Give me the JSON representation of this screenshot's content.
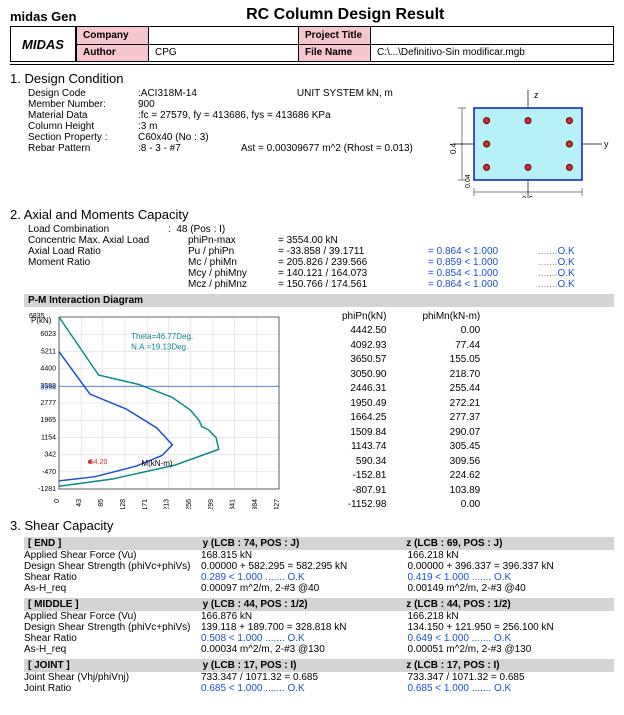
{
  "app": {
    "gen": "midas Gen",
    "title": "RC Column Design Result",
    "logo": "MIDAS"
  },
  "header": {
    "company_lbl": "Company",
    "company_val": "",
    "project_lbl": "Project Title",
    "project_val": "",
    "author_lbl": "Author",
    "author_val": "CPG",
    "file_lbl": "File Name",
    "file_val": "C:\\...\\Definitivo-Sin modificar.mgb"
  },
  "design_condition": {
    "title": "1. Design Condition",
    "code_lbl": "Design Code",
    "code_val": "ACI318M-14",
    "unit_lbl": "UNIT SYSTEM",
    "unit_val": "kN, m",
    "member_lbl": "Member Number:",
    "member_val": "900",
    "material_lbl": "Material Data",
    "material_val": "fc = 27579,   fy = 413686,   fys = 413686 KPa",
    "height_lbl": "Column Height",
    "height_val": "3 m",
    "section_lbl": "Section Property :",
    "section_val": "C60x40 (No : 3)",
    "rebar_lbl": "Rebar Pattern",
    "rebar_val": "8 - 3 - #7",
    "ast": "Ast = 0.00309677 m^2   (Rhost = 0.013)"
  },
  "section_fig": {
    "w": 0.6,
    "h": 0.4,
    "oy": 0.04,
    "fill": "#b8f0f7",
    "border": "#0020d0",
    "rebar_fill": "#d03030",
    "rebar_r": 3,
    "rebars": [
      [
        0.07,
        0.07
      ],
      [
        0.3,
        0.07
      ],
      [
        0.53,
        0.07
      ],
      [
        0.07,
        0.33
      ],
      [
        0.3,
        0.33
      ],
      [
        0.53,
        0.33
      ],
      [
        0.07,
        0.2
      ],
      [
        0.53,
        0.2
      ]
    ]
  },
  "axial": {
    "title": "2. Axial and Moments Capacity",
    "load_comb_lbl": "Load Combination",
    "load_comb_val": "48 (Pos : I)",
    "rows": [
      {
        "l": "Concentric Max. Axial Load",
        "m": "phiPn-max",
        "r": "= 3554.00 kN",
        "ratio": "",
        "ok": ""
      },
      {
        "l": "Axial Load Ratio",
        "m": "Pu / phiPn",
        "r": "= -33.858 / 39.1711",
        "ratio": "= 0.864 < 1.000",
        "ok": "O.K"
      },
      {
        "l": "Moment Ratio",
        "m": "Mc / phiMn",
        "r": "= 205.826 / 239.566",
        "ratio": "= 0.859 < 1.000",
        "ok": "O.K"
      },
      {
        "l": "",
        "m": "Mcy / phiMny",
        "r": "= 140.121 / 164.073",
        "ratio": "= 0.854 < 1.000",
        "ok": "O.K"
      },
      {
        "l": "",
        "m": "Mcz / phiMnz",
        "r": "= 150.766 / 174.561",
        "ratio": "= 0.864 < 1.000",
        "ok": "O.K"
      }
    ]
  },
  "pm": {
    "title": "P-M Interaction Diagram",
    "chart": {
      "xlabel": "M(kN-m)",
      "ylabel": "P(kN)",
      "theta": "Theta=46.77Deg.",
      "na": "N.A.=19.13Deg.",
      "pmax": "6835",
      "pline": "3554",
      "mpoint": "54.20",
      "yticks": [
        "6023",
        "5211",
        "4400",
        "3588",
        "2777",
        "1965",
        "1154",
        "342",
        "-470",
        "-1281"
      ],
      "xticks": [
        "0",
        "43",
        "85",
        "128",
        "171",
        "213",
        "256",
        "299",
        "341",
        "384",
        "427"
      ],
      "outer_color": "#0a8a8a",
      "outer": [
        [
          0,
          6835
        ],
        [
          77,
          4093
        ],
        [
          155,
          3651
        ],
        [
          219,
          3051
        ],
        [
          255,
          2446
        ],
        [
          272,
          1950
        ],
        [
          277,
          1664
        ],
        [
          290,
          1510
        ],
        [
          305,
          1144
        ],
        [
          310,
          590
        ],
        [
          225,
          -153
        ],
        [
          104,
          -808
        ],
        [
          0,
          -1153
        ]
      ],
      "inner_color": "#1a4fd6",
      "inner": [
        [
          0,
          5200
        ],
        [
          60,
          3200
        ],
        [
          130,
          2500
        ],
        [
          190,
          1600
        ],
        [
          220,
          800
        ],
        [
          200,
          300
        ],
        [
          150,
          -200
        ],
        [
          70,
          -700
        ],
        [
          0,
          -900
        ]
      ],
      "ref_val": 3554
    },
    "table": {
      "h1": "phiPn(kN)",
      "h2": "phiMn(kN-m)",
      "rows": [
        [
          "4442.50",
          "0.00"
        ],
        [
          "4092.93",
          "77.44"
        ],
        [
          "3650.57",
          "155.05"
        ],
        [
          "3050.90",
          "218.70"
        ],
        [
          "2446.31",
          "255.44"
        ],
        [
          "1950.49",
          "272.21"
        ],
        [
          "1664.25",
          "277.37"
        ],
        [
          "1509.84",
          "290.07"
        ],
        [
          "1143.74",
          "305.45"
        ],
        [
          "590.34",
          "309.56"
        ],
        [
          "-152.81",
          "224.62"
        ],
        [
          "-807.91",
          "103.89"
        ],
        [
          "-1152.98",
          "0.00"
        ]
      ]
    }
  },
  "shear": {
    "title": "3. Shear Capacity",
    "groups": [
      {
        "name": "[ END ]",
        "y_hdr": "y (LCB :   74, POS : J)",
        "z_hdr": "z (LCB :   69, POS : J)",
        "rows": [
          {
            "l": "Applied Shear Force (Vu)",
            "y": "168.315 kN",
            "z": "166.218 kN"
          },
          {
            "l": "Design Shear Strength (phiVc+phiVs)",
            "y": "0.00000 + 582.295 = 582.295 kN",
            "z": "0.00000 + 396.337 = 396.337 kN"
          },
          {
            "l": "Shear Ratio",
            "y": "0.289 < 1.000 ....... O.K",
            "z": "0.419 < 1.000 ....... O.K",
            "blue": true
          },
          {
            "l": "As-H_req",
            "y": "0.00097 m^2/m, 2-#3  @40",
            "z": "0.00149 m^2/m, 2-#3  @40"
          }
        ]
      },
      {
        "name": "[ MIDDLE ]",
        "y_hdr": "y (LCB :   44, POS : 1/2)",
        "z_hdr": "z (LCB :   44, POS : 1/2)",
        "rows": [
          {
            "l": "Applied Shear Force (Vu)",
            "y": "166.876 kN",
            "z": "166.218 kN"
          },
          {
            "l": "Design Shear Strength (phiVc+phiVs)",
            "y": "139.118 + 189.700 = 328.818 kN",
            "z": "134.150 + 121.950 = 256.100 kN"
          },
          {
            "l": "Shear Ratio",
            "y": "0.508 < 1.000 ....... O.K",
            "z": "0.649 < 1.000 ....... O.K",
            "blue": true
          },
          {
            "l": "As-H_req",
            "y": "0.00034 m^2/m, 2-#3  @130",
            "z": "0.00051 m^2/m, 2-#3  @130"
          }
        ]
      },
      {
        "name": "[ JOINT ]",
        "y_hdr": "y (LCB :   17, POS : I)",
        "z_hdr": "z (LCB :   17, POS : I)",
        "rows": [
          {
            "l": "Joint Shear (Vhj/phiVnj)",
            "y": "733.347 / 1071.32 = 0.685",
            "z": "733.347 / 1071.32 = 0.685"
          },
          {
            "l": "Joint Ratio",
            "y": "0.685 < 1.000 ....... O.K",
            "z": "0.685 < 1.000 ....... O.K",
            "blue": true
          }
        ]
      }
    ]
  }
}
